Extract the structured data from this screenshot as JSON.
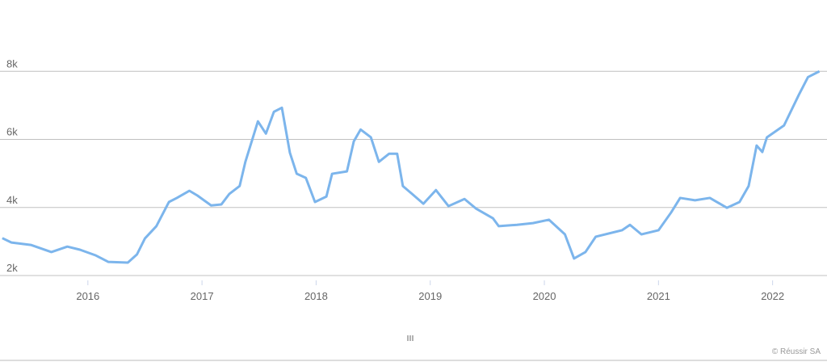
{
  "chart_data": {
    "type": "line",
    "x": [
      2015.25,
      2015.33,
      2015.5,
      2015.68,
      2015.82,
      2015.93,
      2016.07,
      2016.18,
      2016.35,
      2016.43,
      2016.5,
      2016.6,
      2016.71,
      2016.78,
      2016.89,
      2016.96,
      2017.08,
      2017.17,
      2017.24,
      2017.33,
      2017.38,
      2017.49,
      2017.56,
      2017.63,
      2017.7,
      2017.77,
      2017.83,
      2017.91,
      2017.99,
      2018.09,
      2018.14,
      2018.27,
      2018.33,
      2018.39,
      2018.48,
      2018.55,
      2018.64,
      2018.71,
      2018.76,
      2018.84,
      2018.94,
      2019.05,
      2019.16,
      2019.3,
      2019.4,
      2019.55,
      2019.6,
      2019.76,
      2019.9,
      2020.04,
      2020.18,
      2020.26,
      2020.36,
      2020.45,
      2020.68,
      2020.75,
      2020.85,
      2021.0,
      2021.11,
      2021.19,
      2021.32,
      2021.45,
      2021.6,
      2021.71,
      2021.79,
      2021.86,
      2021.91,
      2021.95,
      2022.1,
      2022.23,
      2022.31,
      2022.41
    ],
    "values": [
      3100,
      2970,
      2900,
      2690,
      2850,
      2760,
      2590,
      2400,
      2380,
      2620,
      3090,
      3450,
      4160,
      4280,
      4490,
      4350,
      4060,
      4090,
      4400,
      4630,
      5340,
      6530,
      6170,
      6810,
      6930,
      5610,
      4990,
      4870,
      4160,
      4320,
      4990,
      5060,
      5940,
      6290,
      6060,
      5340,
      5580,
      5580,
      4630,
      4400,
      4110,
      4510,
      4040,
      4250,
      3970,
      3680,
      3450,
      3490,
      3540,
      3640,
      3210,
      2500,
      2690,
      3140,
      3330,
      3490,
      3210,
      3330,
      3850,
      4280,
      4210,
      4280,
      3990,
      4160,
      4630,
      5820,
      5630,
      6060,
      6410,
      7310,
      7830,
      8000
    ],
    "color": "#7cb5ec",
    "xlim": [
      2015.23,
      2022.42
    ],
    "xticks": [
      2016,
      2017,
      2018,
      2019,
      2020,
      2021,
      2022
    ],
    "ylim": [
      2000,
      10000
    ],
    "yticks": [
      {
        "value": 2000,
        "label": "2k"
      },
      {
        "value": 4000,
        "label": "4k"
      },
      {
        "value": 6000,
        "label": "6k"
      },
      {
        "value": 8000,
        "label": "8k"
      }
    ],
    "grid": true,
    "credits": "© Réussir SA"
  }
}
